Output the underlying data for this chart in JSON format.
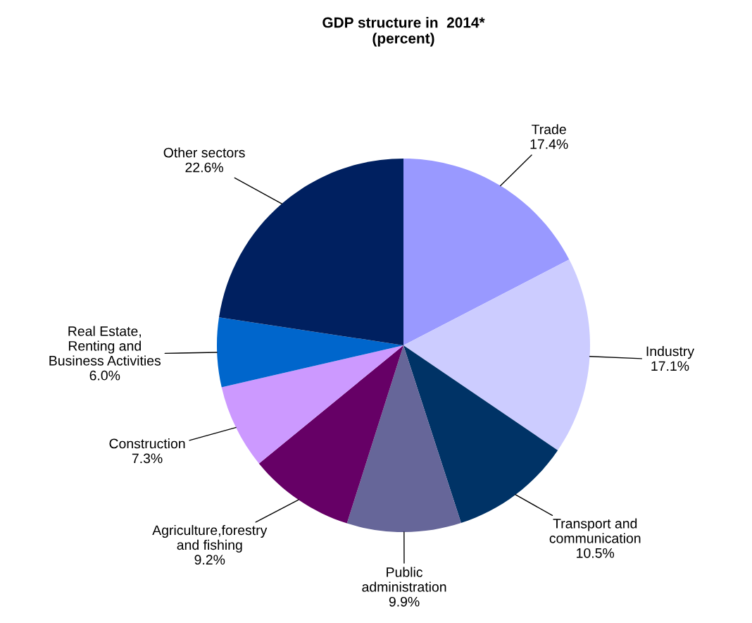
{
  "chart_data": {
    "type": "pie",
    "title": "GDP structure in  2014*\n(percent)",
    "categories": [
      "Trade",
      "Industry",
      "Transport and\ncommunication",
      "Public\nadministration",
      "Agriculture,forestry\nand fishing",
      "Construction",
      "Real Estate,\nRenting and\nBusiness Activities",
      "Other sectors"
    ],
    "values": [
      17.4,
      17.1,
      10.5,
      9.9,
      9.2,
      7.3,
      6.0,
      22.6
    ],
    "value_labels": [
      "17.4%",
      "17.1%",
      "10.5%",
      "9.9%",
      "9.2%",
      "7.3%",
      "6.0%",
      "22.6%"
    ],
    "colors": [
      "#9999ff",
      "#ccccff",
      "#003366",
      "#666699",
      "#660066",
      "#cc99ff",
      "#0066cc",
      "#002060"
    ],
    "legend": false
  }
}
